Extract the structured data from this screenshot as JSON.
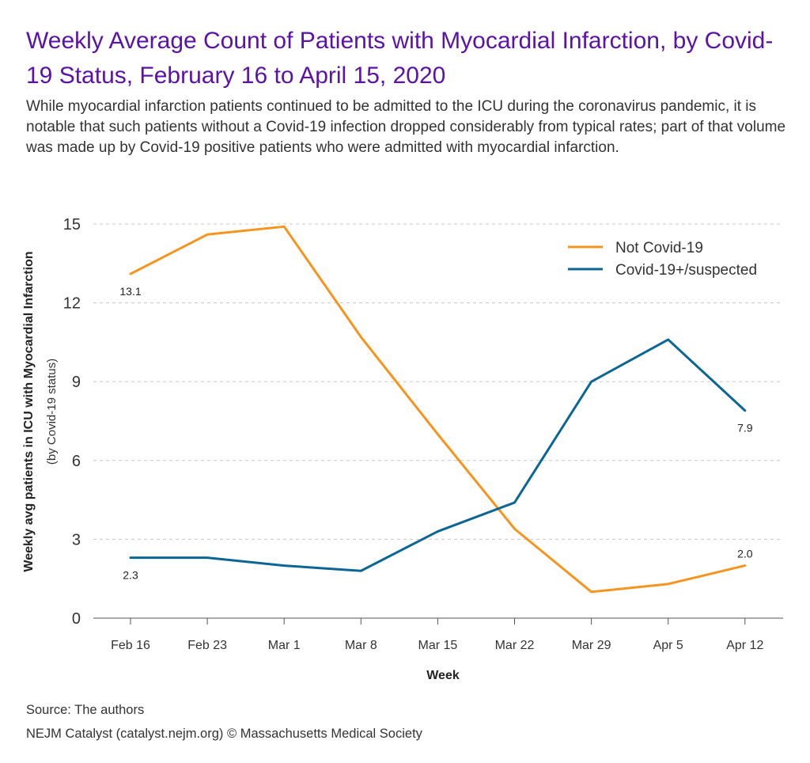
{
  "header": {
    "title": "Weekly Average Count of Patients with Myocardial Infarction, by Covid-19 Status, February 16 to April 15, 2020",
    "subtitle": "While myocardial infarction patients continued to be admitted to the ICU during the coronavirus pandemic, it is notable that such patients without a Covid-19 infection dropped considerably from typical rates; part of that volume was made up by Covid-19 positive patients who were admitted with myocardial infarction."
  },
  "footer": {
    "source": "Source: The authors",
    "credit": "NEJM Catalyst (catalyst.nejm.org) © Massachusetts Medical Society"
  },
  "chart_data": {
    "type": "line",
    "categories": [
      "Feb 16",
      "Feb 23",
      "Mar 1",
      "Mar 8",
      "Mar 15",
      "Mar 22",
      "Mar 29",
      "Apr 5",
      "Apr 12"
    ],
    "series": [
      {
        "name": "Not Covid-19",
        "color": "#f7941d",
        "values": [
          13.1,
          14.6,
          14.9,
          10.7,
          7.0,
          3.4,
          1.0,
          1.3,
          2.0
        ],
        "data_labels": [
          {
            "index": 0,
            "text": "13.1",
            "position": "below"
          },
          {
            "index": 8,
            "text": "2.0",
            "position": "above"
          }
        ]
      },
      {
        "name": "Covid-19+/suspected",
        "color": "#0b6694",
        "values": [
          2.3,
          2.3,
          2.0,
          1.8,
          3.3,
          4.4,
          9.0,
          10.6,
          7.9
        ],
        "data_labels": [
          {
            "index": 0,
            "text": "2.3",
            "position": "below"
          },
          {
            "index": 8,
            "text": "7.9",
            "position": "below"
          }
        ]
      }
    ],
    "xlabel": "Week",
    "ylabel": "Weekly avg patients in ICU with Myocardial Infarction",
    "ylabel_sub": "(by Covid-19 status)",
    "yticks": [
      0,
      3,
      6,
      9,
      12,
      15
    ],
    "ylim": [
      0,
      15
    ],
    "grid": "horizontal dashed",
    "legend": "top-right"
  }
}
